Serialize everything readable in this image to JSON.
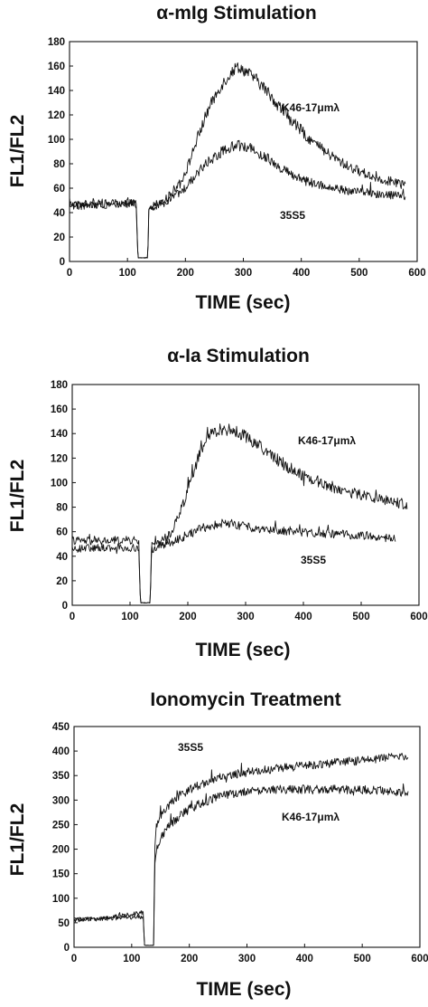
{
  "chart_data": [
    {
      "type": "line",
      "title": "α-mIg Stimulation",
      "xlabel": "TIME (sec)",
      "ylabel": "FL1/FL2",
      "xlim": [
        0,
        600
      ],
      "ylim": [
        0,
        180
      ],
      "xticks": [
        0,
        100,
        200,
        300,
        400,
        500,
        600
      ],
      "yticks": [
        0,
        20,
        40,
        60,
        80,
        100,
        120,
        140,
        160,
        180
      ],
      "grid": false,
      "noise": 5,
      "series": [
        {
          "name": "K46-17μmλ",
          "x": [
            0,
            40,
            80,
            115,
            118,
            120,
            135,
            137,
            145,
            170,
            200,
            220,
            240,
            260,
            280,
            290,
            300,
            320,
            340,
            360,
            380,
            400,
            420,
            440,
            460,
            480,
            500,
            520,
            540,
            560,
            580
          ],
          "y": [
            47,
            47,
            48,
            48,
            3,
            3,
            3,
            45,
            46,
            52,
            72,
            100,
            125,
            143,
            155,
            160,
            157,
            150,
            140,
            128,
            117,
            107,
            98,
            90,
            84,
            78,
            74,
            70,
            67,
            65,
            63
          ]
        },
        {
          "name": "35S5",
          "x": [
            0,
            40,
            80,
            115,
            118,
            120,
            135,
            137,
            145,
            170,
            200,
            220,
            240,
            260,
            280,
            300,
            320,
            340,
            360,
            380,
            400,
            420,
            440,
            460,
            480,
            500,
            520,
            540,
            560,
            580
          ],
          "y": [
            45,
            46,
            47,
            47,
            3,
            3,
            3,
            44,
            45,
            49,
            60,
            72,
            82,
            89,
            94,
            95,
            91,
            85,
            78,
            72,
            67,
            64,
            62,
            60,
            58,
            57,
            56,
            55,
            54,
            53
          ]
        }
      ],
      "annotations": [
        "K46-17μmλ",
        "35S5"
      ]
    },
    {
      "type": "line",
      "title": "α-Ia Stimulation",
      "xlabel": "TIME (sec)",
      "ylabel": "FL1/FL2",
      "xlim": [
        0,
        600
      ],
      "ylim": [
        0,
        180
      ],
      "xticks": [
        0,
        100,
        200,
        300,
        400,
        500,
        600
      ],
      "yticks": [
        0,
        20,
        40,
        60,
        80,
        100,
        120,
        140,
        160,
        180
      ],
      "grid": false,
      "noise": 5,
      "series": [
        {
          "name": "K46-17μmλ",
          "x": [
            0,
            40,
            80,
            115,
            118,
            120,
            135,
            137,
            145,
            170,
            190,
            200,
            210,
            220,
            230,
            240,
            260,
            280,
            300,
            320,
            340,
            360,
            380,
            400,
            420,
            440,
            460,
            480,
            500,
            520,
            540,
            560,
            580
          ],
          "y": [
            53,
            52,
            53,
            53,
            2,
            2,
            2,
            48,
            50,
            58,
            80,
            95,
            110,
            122,
            133,
            140,
            144,
            142,
            138,
            131,
            124,
            117,
            111,
            106,
            102,
            98,
            95,
            92,
            90,
            88,
            86,
            84,
            82
          ]
        },
        {
          "name": "35S5",
          "x": [
            0,
            40,
            80,
            115,
            118,
            120,
            135,
            137,
            145,
            170,
            200,
            220,
            240,
            260,
            280,
            300,
            340,
            380,
            420,
            460,
            500,
            540,
            560
          ],
          "y": [
            46,
            47,
            47,
            47,
            2,
            2,
            2,
            45,
            47,
            51,
            57,
            62,
            65,
            67,
            66,
            64,
            62,
            60,
            59,
            58,
            57,
            55,
            54
          ]
        }
      ],
      "annotations": [
        "K46-17μmλ",
        "35S5"
      ]
    },
    {
      "type": "line",
      "title": "Ionomycin Treatment",
      "xlabel": "TIME (sec)",
      "ylabel": "FL1/FL2",
      "xlim": [
        0,
        600
      ],
      "ylim": [
        0,
        450
      ],
      "xticks": [
        0,
        100,
        200,
        300,
        400,
        500,
        600
      ],
      "yticks": [
        0,
        50,
        100,
        150,
        200,
        250,
        300,
        350,
        400,
        450
      ],
      "grid": false,
      "noise": 9,
      "series": [
        {
          "name": "35S5",
          "x": [
            0,
            40,
            80,
            110,
            120,
            122,
            138,
            140,
            142,
            150,
            165,
            180,
            200,
            230,
            260,
            300,
            350,
            400,
            450,
            500,
            550,
            580
          ],
          "y": [
            55,
            58,
            63,
            70,
            72,
            4,
            4,
            200,
            245,
            270,
            290,
            305,
            322,
            337,
            348,
            357,
            364,
            370,
            376,
            381,
            387,
            392
          ]
        },
        {
          "name": "K46-17μmλ",
          "x": [
            0,
            40,
            80,
            110,
            120,
            122,
            138,
            140,
            142,
            150,
            165,
            180,
            200,
            230,
            260,
            300,
            350,
            400,
            450,
            500,
            550,
            580
          ],
          "y": [
            57,
            58,
            60,
            62,
            63,
            4,
            4,
            160,
            195,
            222,
            248,
            265,
            282,
            298,
            310,
            317,
            321,
            322,
            322,
            321,
            318,
            316
          ]
        }
      ],
      "annotations": [
        "35S5",
        "K46-17μmλ"
      ]
    }
  ]
}
